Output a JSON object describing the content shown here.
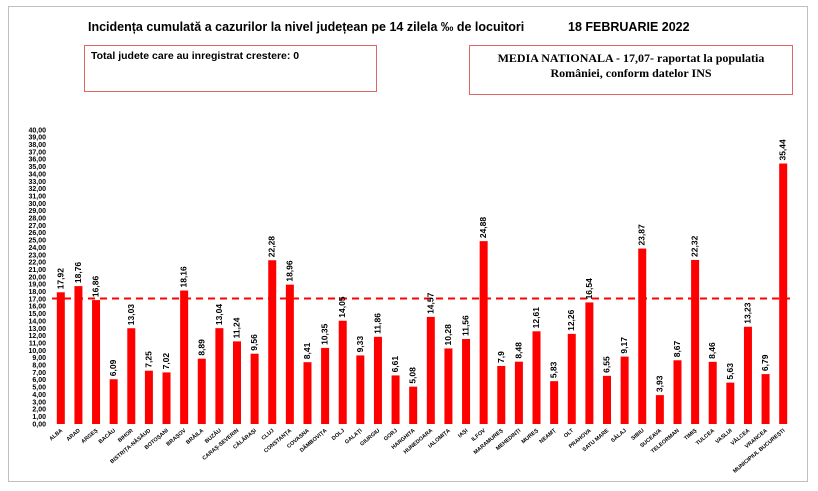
{
  "header": {
    "title": "Incidența cumulată a cazurilor la nivel județean pe 14 zilela ‰ de locuitori",
    "date": "18 FEBRUARIE 2022"
  },
  "info_left": {
    "text": "Total judete care au inregistrat crestere: 0"
  },
  "info_right": {
    "line1": "MEDIA NATIONALA - 17,07-  raportat la populatia",
    "line2": "României, conform datelor INS"
  },
  "colors": {
    "bar": "#ff0000",
    "average_line": "#ff0000",
    "box_border": "#e06666"
  },
  "chart_data": {
    "type": "bar",
    "categories": [
      "ALBA",
      "ARAD",
      "ARGEȘ",
      "BACĂU",
      "BIHOR",
      "BISTRIȚA-NĂSĂUD",
      "BOTOȘANI",
      "BRAȘOV",
      "BRĂILA",
      "BUZĂU",
      "CARAȘ-SEVERIN",
      "CĂLĂRAȘI",
      "CLUJ",
      "CONSTANȚA",
      "COVASNA",
      "DÂMBOVIȚA",
      "DOLJ",
      "GALAȚI",
      "GIURGIU",
      "GORJ",
      "HARGHITA",
      "HUNEDOARA",
      "IALOMIȚA",
      "IAȘI",
      "ILFOV",
      "MARAMUREȘ",
      "MEHEDINȚI",
      "MUREȘ",
      "NEAMȚ",
      "OLT",
      "PRAHOVA",
      "SATU MARE",
      "SĂLAJ",
      "SIBIU",
      "SUCEAVA",
      "TELEORMAN",
      "TIMIȘ",
      "TULCEA",
      "VASLUI",
      "VÂLCEA",
      "VRANCEA",
      "MUNICIPIUL BUCUREȘTI"
    ],
    "values": [
      17.92,
      18.76,
      16.86,
      6.09,
      13.03,
      7.25,
      7.02,
      18.16,
      8.89,
      13.04,
      11.24,
      9.56,
      22.28,
      18.96,
      8.41,
      10.35,
      14.05,
      9.33,
      11.86,
      6.61,
      5.08,
      14.57,
      10.28,
      11.56,
      24.88,
      7.9,
      8.48,
      12.61,
      5.83,
      12.26,
      16.54,
      6.55,
      9.17,
      23.87,
      3.93,
      8.67,
      22.32,
      8.46,
      5.63,
      13.23,
      6.79,
      35.44
    ],
    "value_labels": [
      "17,92",
      "18,76",
      "16,86",
      "6,09",
      "13,03",
      "7,25",
      "7,02",
      "18,16",
      "8,89",
      "13,04",
      "11,24",
      "9,56",
      "22,28",
      "18,96",
      "8,41",
      "10,35",
      "14,05",
      "9,33",
      "11,86",
      "6,61",
      "5,08",
      "14,57",
      "10,28",
      "11,56",
      "24,88",
      "7,9",
      "8,48",
      "12,61",
      "5,83",
      "12,26",
      "16,54",
      "6,55",
      "9,17",
      "23,87",
      "3,93",
      "8,67",
      "22,32",
      "8,46",
      "5,63",
      "13,23",
      "6,79",
      "35,44"
    ],
    "y_ticks": [
      "0,00",
      "1,00",
      "2,00",
      "3,00",
      "4,00",
      "5,00",
      "6,00",
      "7,00",
      "8,00",
      "9,00",
      "10,00",
      "11,00",
      "12,00",
      "13,00",
      "14,00",
      "15,00",
      "16,00",
      "17,00",
      "18,00",
      "19,00",
      "20,00",
      "21,00",
      "22,00",
      "23,00",
      "24,00",
      "25,00",
      "26,00",
      "27,00",
      "28,00",
      "29,00",
      "30,00",
      "31,00",
      "32,00",
      "33,00",
      "34,00",
      "35,00",
      "36,00",
      "37,00",
      "38,00",
      "39,00",
      "40,00"
    ],
    "ylim": [
      0,
      40
    ],
    "average": 17.07,
    "grid": false,
    "legend": "none"
  }
}
